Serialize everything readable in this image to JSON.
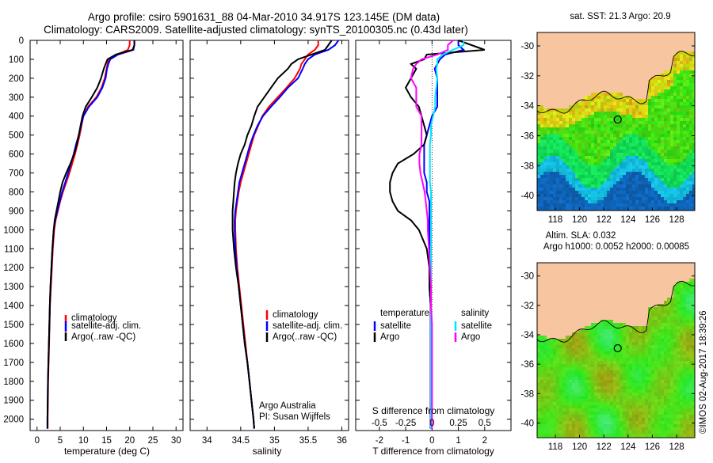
{
  "header": {
    "line1": "Argo profile: csiro 5901631_88 04-Mar-2010 34.917S 123.145E (DM data)",
    "line2": "Climatology: CARS2009. Satellite-adjusted climatology: synTS_20100305.nc (0.43d later)"
  },
  "colors": {
    "climatology": "#ff0000",
    "satellite": "#0000ff",
    "argo": "#000000",
    "salinity_satellite": "#00e5ff",
    "salinity_argo": "#ff00ff",
    "land": "#f7c6a0"
  },
  "depth_axis": {
    "ticks": [
      0,
      100,
      200,
      300,
      400,
      500,
      600,
      700,
      800,
      900,
      1000,
      1100,
      1200,
      1300,
      1400,
      1500,
      1600,
      1700,
      1800,
      1900,
      2000
    ]
  },
  "chart_data": [
    {
      "type": "line",
      "name": "temperature",
      "xlabel": "temperature (deg C)",
      "xticks": [
        0,
        5,
        10,
        15,
        20,
        25,
        30
      ],
      "xlim": [
        -1.5,
        31.5
      ],
      "ylim": [
        0,
        2060
      ],
      "legend": {
        "climatology": "climatology",
        "satellite": "satellite-adj. clim.",
        "argo": "Argo(..raw -QC)"
      },
      "depth": [
        0,
        25,
        50,
        75,
        100,
        125,
        150,
        200,
        250,
        300,
        350,
        400,
        450,
        500,
        550,
        600,
        650,
        700,
        750,
        800,
        850,
        900,
        950,
        1000,
        1100,
        1200,
        1300,
        1400,
        1500,
        1600,
        1700,
        1800,
        1900,
        2000,
        2050
      ],
      "series": [
        {
          "key": "climatology",
          "values": [
            20,
            20,
            19.6,
            17.2,
            15.5,
            15.2,
            15.0,
            14.6,
            13.9,
            12.8,
            11.0,
            10.0,
            9.6,
            9.2,
            8.7,
            8.2,
            7.6,
            7.0,
            6.3,
            5.6,
            5.0,
            4.5,
            4.0,
            3.7,
            3.4,
            3.2,
            3.0,
            2.8,
            2.7,
            2.6,
            2.5,
            2.4,
            2.35,
            2.3,
            2.3
          ]
        },
        {
          "key": "satellite",
          "values": [
            21,
            21,
            20.8,
            17.5,
            15.8,
            15.4,
            15.1,
            14.8,
            14.1,
            13.0,
            11.2,
            10.0,
            9.5,
            9.0,
            8.4,
            7.9,
            7.3,
            6.7,
            6.1,
            5.4,
            4.9,
            4.4,
            3.9,
            3.6,
            3.3,
            3.1,
            2.9,
            2.75,
            2.65,
            2.55,
            2.45,
            2.35,
            2.3,
            2.25,
            2.25
          ]
        },
        {
          "key": "argo",
          "values": [
            21,
            21,
            20.6,
            17.0,
            15.2,
            14.8,
            14.4,
            13.8,
            13.0,
            11.8,
            10.5,
            9.8,
            9.4,
            9.0,
            8.6,
            8.0,
            7.2,
            6.3,
            5.5,
            5.0,
            4.6,
            4.2,
            3.8,
            3.6,
            3.3,
            3.1,
            2.9,
            2.75,
            2.65,
            2.55,
            2.45,
            2.35,
            2.3,
            2.25,
            2.25
          ]
        }
      ]
    },
    {
      "type": "line",
      "name": "salinity",
      "xlabel": "salinity",
      "xticks": [
        34,
        34.5,
        35,
        35.5,
        36
      ],
      "xlim": [
        33.75,
        36.1
      ],
      "ylim": [
        0,
        2060
      ],
      "legend": {
        "climatology": "climatology",
        "satellite": "satellite-adj. clim.",
        "argo": "Argo(..raw -QC)"
      },
      "annotation": [
        "Argo Australia",
        "PI: Susan Wijffels"
      ],
      "depth": [
        0,
        25,
        50,
        75,
        100,
        125,
        150,
        200,
        250,
        300,
        350,
        400,
        450,
        500,
        550,
        600,
        650,
        700,
        750,
        800,
        850,
        900,
        950,
        1000,
        1100,
        1200,
        1300,
        1400,
        1500,
        1600,
        1700,
        1800,
        1900,
        2000,
        2050
      ],
      "series": [
        {
          "key": "climatology",
          "values": [
            35.65,
            35.65,
            35.6,
            35.5,
            35.45,
            35.4,
            35.38,
            35.3,
            35.18,
            35.05,
            34.92,
            34.82,
            34.76,
            34.7,
            34.66,
            34.62,
            34.58,
            34.54,
            34.5,
            34.47,
            34.45,
            34.43,
            34.42,
            34.42,
            34.43,
            34.45,
            34.48,
            34.51,
            34.54,
            34.57,
            34.6,
            34.63,
            34.66,
            34.69,
            34.7
          ]
        },
        {
          "key": "satellite",
          "values": [
            35.95,
            35.9,
            35.8,
            35.6,
            35.5,
            35.45,
            35.42,
            35.35,
            35.2,
            35.08,
            34.95,
            34.83,
            34.75,
            34.69,
            34.64,
            34.6,
            34.56,
            34.52,
            34.48,
            34.46,
            34.44,
            34.42,
            34.41,
            34.41,
            34.42,
            34.44,
            34.47,
            34.5,
            34.53,
            34.56,
            34.6,
            34.63,
            34.66,
            34.69,
            34.7
          ]
        },
        {
          "key": "argo",
          "values": [
            35.85,
            35.8,
            35.75,
            35.55,
            35.35,
            35.25,
            35.2,
            35.05,
            34.95,
            34.85,
            34.75,
            34.7,
            34.66,
            34.6,
            34.56,
            34.5,
            34.46,
            34.43,
            34.41,
            34.4,
            34.39,
            34.38,
            34.38,
            34.38,
            34.4,
            34.43,
            34.47,
            34.5,
            34.53,
            34.56,
            34.6,
            34.63,
            34.66,
            34.69,
            34.7
          ]
        }
      ]
    },
    {
      "type": "line",
      "name": "difference",
      "xlabel": "T difference from climatology",
      "xlabel_top": "S difference from climatology",
      "xticks": [
        -2,
        -1,
        0,
        1,
        2
      ],
      "xticks_top": [
        -0.5,
        -0.25,
        0,
        0.25,
        0.5
      ],
      "xtick_top_labels": [
        "-0.5",
        "-0.25",
        "0",
        "0.25",
        "0.5"
      ],
      "xlim": [
        -2.9,
        3.0
      ],
      "ylim": [
        0,
        2060
      ],
      "legend": {
        "temperature": "temperature",
        "salinity": "salinity",
        "satellite": "satellite",
        "argo": "Argo"
      },
      "depth": [
        0,
        25,
        50,
        75,
        100,
        125,
        150,
        200,
        250,
        300,
        350,
        400,
        450,
        500,
        550,
        600,
        650,
        700,
        750,
        800,
        850,
        900,
        950,
        1000,
        1100,
        1200,
        1300,
        1400,
        1500,
        1600,
        1700,
        1800,
        1900,
        2000,
        2050
      ],
      "series": [
        {
          "key": "t_satellite",
          "values": [
            1.0,
            1.0,
            1.2,
            0.5,
            0.3,
            0.2,
            0.1,
            0.2,
            0.2,
            0.2,
            0.2,
            0.0,
            -0.1,
            -0.2,
            -0.3,
            -0.3,
            -0.3,
            -0.3,
            -0.2,
            -0.2,
            -0.1,
            -0.1,
            -0.1,
            -0.1,
            -0.1,
            -0.1,
            -0.1,
            -0.05,
            -0.05,
            -0.05,
            -0.05,
            -0.05,
            -0.05,
            -0.05,
            -0.05
          ]
        },
        {
          "key": "t_argo",
          "values": [
            1.0,
            1.5,
            2.0,
            -0.2,
            -0.3,
            -0.8,
            -0.6,
            -0.8,
            -1.0,
            -0.8,
            -0.5,
            -0.4,
            -0.3,
            -0.2,
            -0.3,
            -0.7,
            -1.3,
            -1.5,
            -1.6,
            -1.6,
            -1.5,
            -1.3,
            -0.8,
            -0.5,
            -0.2,
            -0.1,
            -0.1,
            -0.05,
            -0.05,
            -0.05,
            -0.05,
            -0.05,
            -0.05,
            -0.05,
            -0.05
          ]
        },
        {
          "key": "s_satellite",
          "values": [
            0.3,
            0.3,
            0.2,
            0.1,
            0.05,
            0.05,
            0.04,
            0.05,
            0.04,
            0.03,
            0.03,
            0.01,
            -0.01,
            -0.01,
            -0.02,
            -0.02,
            -0.02,
            -0.02,
            -0.02,
            -0.01,
            -0.01,
            -0.01,
            -0.01,
            -0.01,
            -0.01,
            -0.01,
            -0.01,
            -0.01,
            -0.01,
            -0.01,
            -0.01,
            -0.01,
            -0.01,
            -0.01,
            -0.01
          ]
        },
        {
          "key": "s_argo",
          "values": [
            0.2,
            0.15,
            0.15,
            0.05,
            -0.1,
            -0.15,
            -0.18,
            -0.2,
            -0.15,
            -0.15,
            -0.15,
            -0.1,
            -0.1,
            -0.1,
            -0.1,
            -0.12,
            -0.12,
            -0.11,
            -0.09,
            -0.07,
            -0.06,
            -0.05,
            -0.04,
            -0.04,
            -0.03,
            -0.02,
            -0.01,
            -0.01,
            0,
            0,
            0,
            0,
            0,
            0,
            0
          ]
        }
      ]
    }
  ],
  "maps": {
    "top_title": "sat. SST: 21.3 Argo: 20.9",
    "bottom_title1": "Altim. SLA: 0.032",
    "bottom_title2": "Argo h1000: 0.0052 h2000: 0.00085",
    "lat_ticks": [
      -30,
      -32,
      -34,
      -36,
      -38,
      -40
    ],
    "lon_ticks": [
      118,
      120,
      122,
      124,
      126,
      128
    ],
    "lat_range": [
      -41,
      -29.1
    ],
    "lon_range": [
      116.5,
      129.5
    ],
    "float_position": {
      "lon": 123.145,
      "lat": -34.917
    }
  },
  "footer": {
    "timestamp": "©IMOS 02-Aug-2017 18:39:26"
  }
}
